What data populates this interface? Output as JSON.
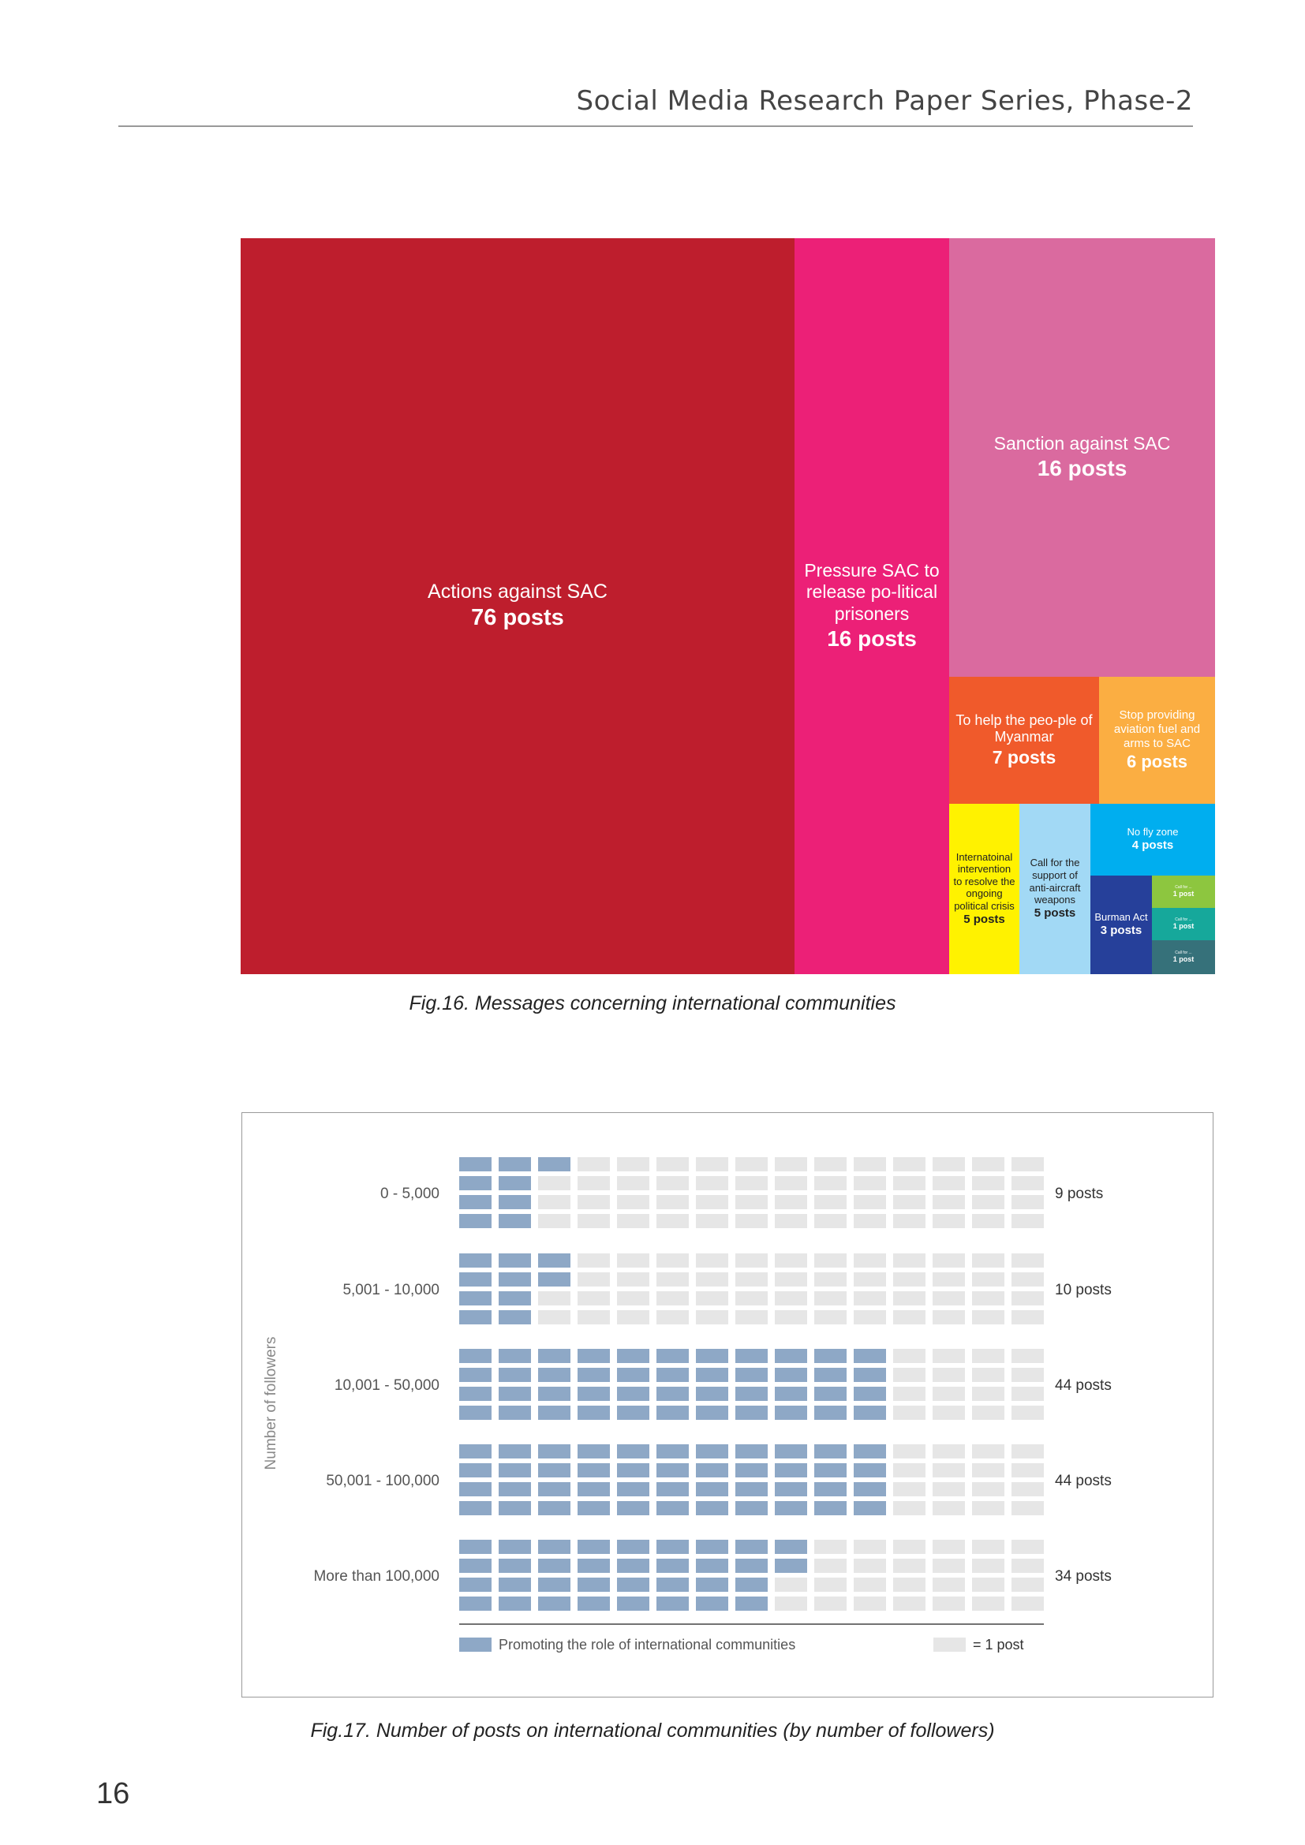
{
  "header": {
    "title": "Social Media Research Paper Series, Phase-2"
  },
  "figure16": {
    "caption": "Fig.16. Messages concerning international communities",
    "chart_data": {
      "type": "treemap",
      "unit": "posts",
      "items": [
        {
          "label": "Actions against SAC",
          "value": 76,
          "count_text": "76 posts",
          "color": "#be1e2d"
        },
        {
          "label": "Pressure SAC to release po-litical prisoners",
          "value": 16,
          "count_text": "16 posts",
          "color": "#ec2077"
        },
        {
          "label": "Sanction against SAC",
          "value": 16,
          "count_text": "16 posts",
          "color": "#da6a9f"
        },
        {
          "label": "To help the peo-ple of Myanmar",
          "value": 7,
          "count_text": "7 posts",
          "color": "#f05a2b"
        },
        {
          "label": "Stop providing aviation fuel and arms to SAC",
          "value": 6,
          "count_text": "6 posts",
          "color": "#fbae42"
        },
        {
          "label": "Internatoinal intervention to resolve the ongoing political crisis",
          "value": 5,
          "count_text": "5 posts",
          "color": "#fff200"
        },
        {
          "label": "Call for the support of anti-aircraft weapons",
          "value": 5,
          "count_text": "5 posts",
          "color": "#a2d9f5"
        },
        {
          "label": "No fly zone",
          "value": 4,
          "count_text": "4 posts",
          "color": "#00aeef"
        },
        {
          "label": "Burman Act",
          "value": 3,
          "count_text": "3 posts",
          "color": "#26409a"
        },
        {
          "label": "Call for ...",
          "value": 1,
          "count_text": "1 post",
          "color": "#8dc63f"
        },
        {
          "label": "Call for ...",
          "value": 1,
          "count_text": "1 post",
          "color": "#16a89b"
        },
        {
          "label": "Call for ...",
          "value": 1,
          "count_text": "1 post",
          "color": "#36717a"
        }
      ]
    }
  },
  "figure17": {
    "caption": "Fig.17. Number of posts on international communities (by number of followers)",
    "chart_data": {
      "type": "waffle",
      "ylabel": "Number of followers",
      "categories": [
        "0 - 5,000",
        "5,001 - 10,000",
        "10,001 - 50,000",
        "50,001 - 100,000",
        "More than 100,000"
      ],
      "values": [
        9,
        10,
        44,
        44,
        34
      ],
      "value_labels": [
        "9 posts",
        "10 posts",
        "44 posts",
        "44 posts",
        "34 posts"
      ],
      "grid": {
        "columns": 15,
        "rows_per_group": 4
      },
      "filled_color": "#8ea8c6",
      "empty_color": "#e6e6e6",
      "legend": {
        "filled_label": "Promoting the role of international communities",
        "unit_label": "= 1 post",
        "placement": "bottom"
      }
    }
  },
  "page_number": "16"
}
